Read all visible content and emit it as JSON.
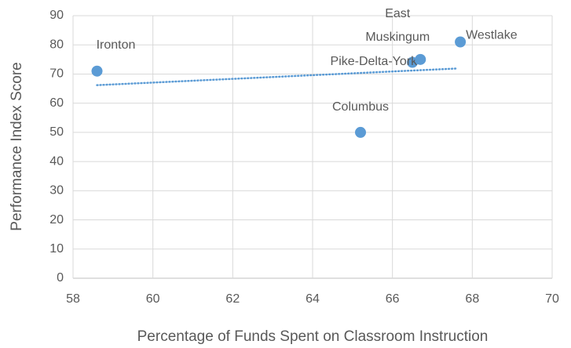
{
  "chart_data": {
    "type": "scatter",
    "x_label": "Percentage of Funds Spent on Classroom Instruction",
    "y_label": "Performance Index Score",
    "x": [
      58.6,
      65.2,
      66.5,
      66.7,
      67.7
    ],
    "values": [
      71,
      50,
      74,
      75,
      81
    ],
    "labels": [
      [
        "Ironton"
      ],
      [
        "Columbus"
      ],
      [
        "Pike-Delta-York"
      ],
      [
        "East",
        "Muskingum"
      ],
      [
        "Westlake"
      ]
    ],
    "color": "#5b9bd5",
    "trendline": "linear",
    "xlim": [
      58,
      70
    ],
    "xticks": [
      58,
      60,
      62,
      64,
      66,
      68,
      70
    ],
    "ylim": [
      0,
      90
    ],
    "yticks": [
      0,
      10,
      20,
      30,
      40,
      50,
      60,
      70,
      80,
      90
    ],
    "grid": true
  }
}
